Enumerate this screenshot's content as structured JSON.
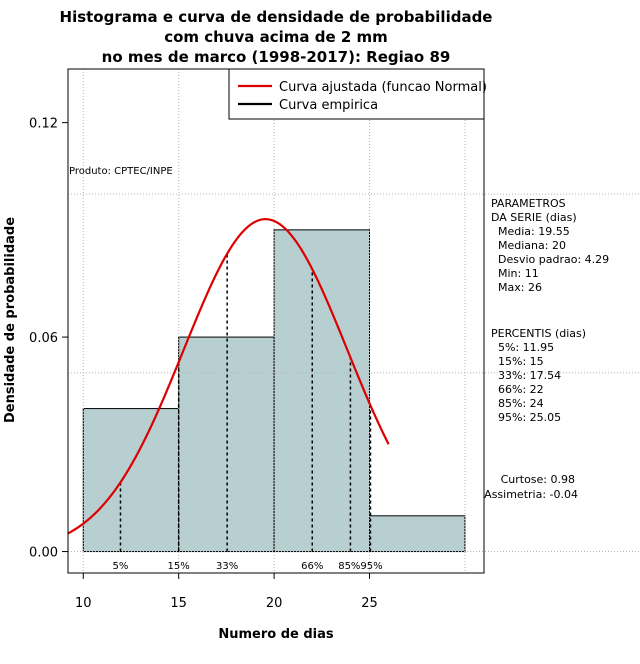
{
  "chart_data": {
    "type": "bar",
    "title_lines": [
      "Histograma e curva de densidade de probabilidade",
      "com chuva acima de 2 mm",
      "no mes de marco (1998-2017): Regiao 89"
    ],
    "xlabel": "Numero de dias",
    "ylabel": "Densidade de probabilidade",
    "xlim": [
      9.2,
      31.0
    ],
    "ylim": [
      -0.006,
      0.135
    ],
    "x_ticks": [
      10,
      15,
      20,
      25
    ],
    "y_ticks": [
      0.0,
      0.06,
      0.12
    ],
    "y_tick_labels": [
      "0.00",
      "0.06",
      "0.12"
    ],
    "grid": true,
    "grid_x": [
      10,
      15,
      20,
      25,
      30
    ],
    "grid_y": [
      0.0,
      0.05,
      0.1
    ],
    "bars": [
      {
        "x0": 10,
        "x1": 15,
        "density": 0.04
      },
      {
        "x0": 15,
        "x1": 20,
        "density": 0.06
      },
      {
        "x0": 20,
        "x1": 25,
        "density": 0.09
      },
      {
        "x0": 25,
        "x1": 30,
        "density": 0.01
      }
    ],
    "bar_color": "#b7cfd0",
    "normal_curve": {
      "name": "Curva ajustada (funcao Normal)",
      "color": "#dd0000",
      "mean": 19.55,
      "sd": 4.29,
      "x_from": 9.2,
      "x_to": 26.0
    },
    "empirical_curve": {
      "name": "Curva empirica",
      "color": "#000000"
    },
    "legend_position": "top-right",
    "percentile_lines": [
      {
        "label": "5%",
        "value": 11.95
      },
      {
        "label": "15%",
        "value": 15
      },
      {
        "label": "33%",
        "value": 17.54
      },
      {
        "label": "66%",
        "value": 22
      },
      {
        "label": "85%",
        "value": 24
      },
      {
        "label": "95%",
        "value": 25.05
      }
    ],
    "percentile_marker_text": [
      "5%",
      "15%",
      "33%",
      "66%",
      "85%95%"
    ],
    "annotation": "Produto: CPTEC/INPE",
    "params_header": [
      "PARAMETROS",
      "DA SERIE (dias)"
    ],
    "params": [
      "Media: 19.55",
      "Mediana: 20",
      "Desvio padrao: 4.29",
      "Min: 11",
      "Max: 26"
    ],
    "percentis_header": "PERCENTIS (dias)",
    "percentis": [
      "5%: 11.95",
      "15%: 15",
      "33%: 17.54",
      "66%: 22",
      "85%: 24",
      "95%: 25.05"
    ],
    "shape_stats": [
      "Curtose: 0.98",
      "Assimetria: -0.04"
    ]
  }
}
